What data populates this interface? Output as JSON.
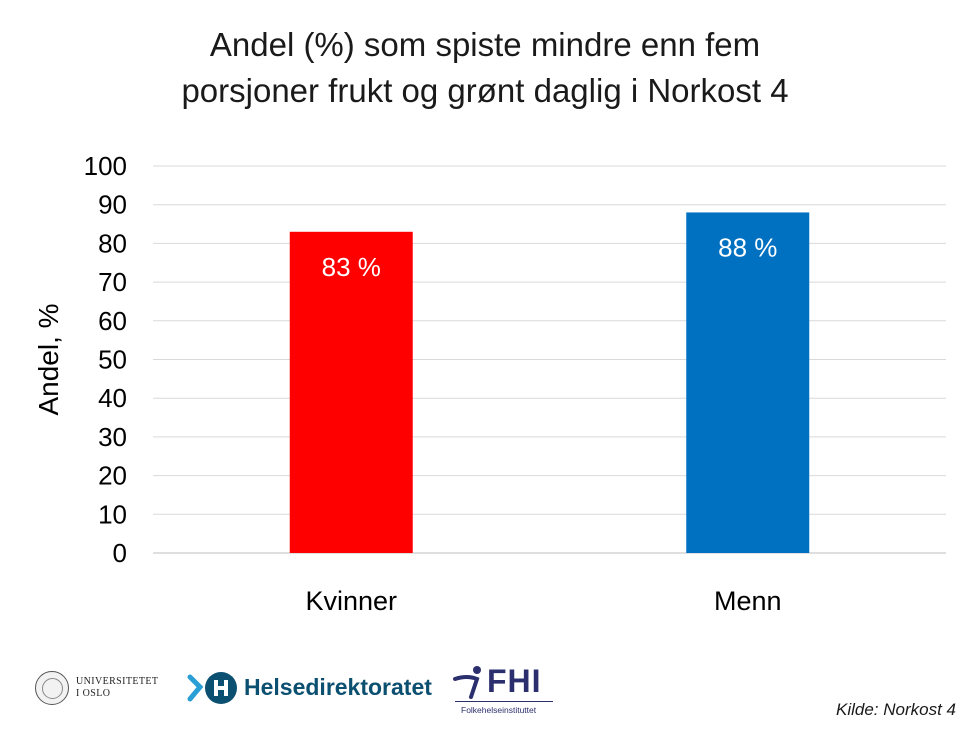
{
  "chart_data": {
    "type": "bar",
    "title_lines": [
      "Andel (%) som spiste mindre enn fem",
      "porsjoner frukt og grønt daglig i Norkost 4"
    ],
    "categories": [
      "Kvinner",
      "Menn"
    ],
    "values": [
      83,
      88
    ],
    "data_labels": [
      "83 %",
      "88 %"
    ],
    "bar_colors": [
      "#ff0000",
      "#0070c0"
    ],
    "ylabel": "Andel, %",
    "xlabel": "",
    "ylim": [
      0,
      100
    ],
    "yticks": [
      0,
      10,
      20,
      30,
      40,
      50,
      60,
      70,
      80,
      90,
      100
    ],
    "grid": true,
    "legend": "none"
  },
  "footer": {
    "uio_line1": "UNIVERSITETET",
    "uio_line2": "I OSLO",
    "hdir_name": "Helsedirektoratet",
    "fhi_name": "FHI",
    "fhi_sub": "Folkehelseinstituttet",
    "source": "Kilde: Norkost 4"
  },
  "colors": {
    "hdir_teal": "#0b4f71",
    "hdir_light": "#2a9fd6",
    "fhi_navy": "#2b2f6e",
    "grid": "#d9d9d9"
  }
}
